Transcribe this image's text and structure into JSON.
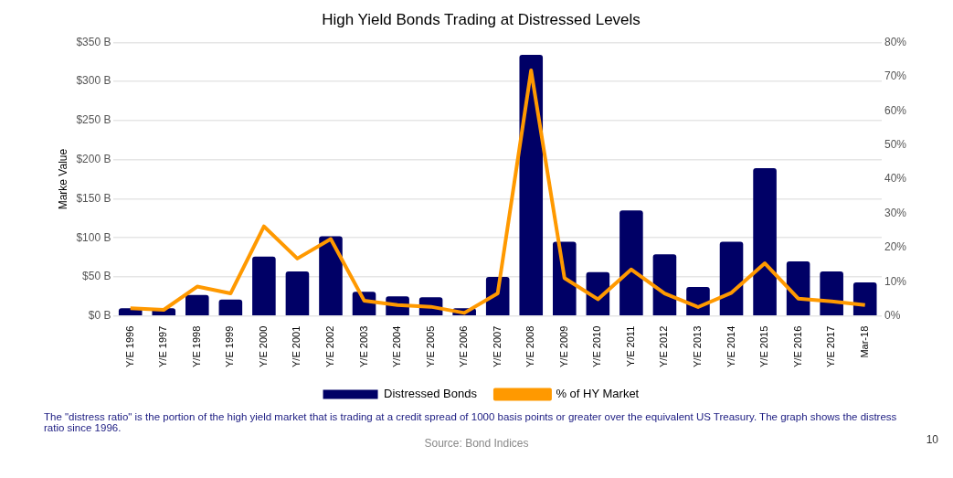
{
  "chart_data": {
    "type": "bar",
    "title": "High Yield Bonds Trading at Distressed Levels",
    "ylabel": "Marke Value",
    "categories": [
      "Y/E 1996",
      "Y/E 1997",
      "Y/E 1998",
      "Y/E 1999",
      "Y/E 2000",
      "Y/E 2001",
      "Y/E 2002",
      "Y/E 2003",
      "Y/E 2004",
      "Y/E 2005",
      "Y/E 2006",
      "Y/E 2007",
      "Y/E 2008",
      "Y/E 2009",
      "Y/E 2010",
      "Y/E 2011",
      "Y/E 2012",
      "Y/E 2013",
      "Y/E 2014",
      "Y/E 2015",
      "Y/E 2016",
      "Y/E 2017",
      "Mar-18"
    ],
    "series": [
      {
        "name": "Distressed Bonds",
        "color": "#000066",
        "values": [
          10,
          10,
          27,
          21,
          76,
          57,
          102,
          31,
          25,
          24,
          10,
          50,
          334,
          95,
          56,
          135,
          79,
          37,
          95,
          189,
          70,
          57,
          43
        ]
      },
      {
        "name": "% of HY Market",
        "type": "line",
        "axis": "y2",
        "color": "#ff9900",
        "values": [
          2.3,
          1.8,
          8.6,
          6.6,
          26.2,
          16.8,
          22.5,
          4.5,
          3.2,
          2.7,
          0.9,
          6.6,
          71.8,
          11.1,
          4.9,
          13.6,
          6.6,
          2.6,
          6.8,
          15.4,
          5.1,
          4.3,
          3.2
        ]
      }
    ],
    "ylim": [
      0,
      350
    ],
    "yticks": [
      {
        "value": 0,
        "label": "$0 B"
      },
      {
        "value": 50,
        "label": "$50 B"
      },
      {
        "value": 100,
        "label": "$100 B"
      },
      {
        "value": 150,
        "label": "$150 B"
      },
      {
        "value": 200,
        "label": "$200 B"
      },
      {
        "value": 250,
        "label": "$250 B"
      },
      {
        "value": 300,
        "label": "$300 B"
      },
      {
        "value": 350,
        "label": "$350 B"
      }
    ],
    "y2lim": [
      0,
      80
    ],
    "y2ticks": [
      {
        "value": 0,
        "label": "0%"
      },
      {
        "value": 10,
        "label": "10%"
      },
      {
        "value": 20,
        "label": "20%"
      },
      {
        "value": 30,
        "label": "30%"
      },
      {
        "value": 40,
        "label": "40%"
      },
      {
        "value": 50,
        "label": "50%"
      },
      {
        "value": 60,
        "label": "60%"
      },
      {
        "value": 70,
        "label": "70%"
      },
      {
        "value": 80,
        "label": "80%"
      }
    ],
    "grid": "y",
    "legend": "bottom",
    "marker": "none",
    "line_style": "solid",
    "annotations": [
      "The \"distress ratio\" is the portion of the high yield market that is trading at a credit spread of 1000 basis points or greater over the equivalent US Treasury. The graph shows the distress ratio since 1996.",
      "Source: Bond Indices",
      "10"
    ]
  }
}
